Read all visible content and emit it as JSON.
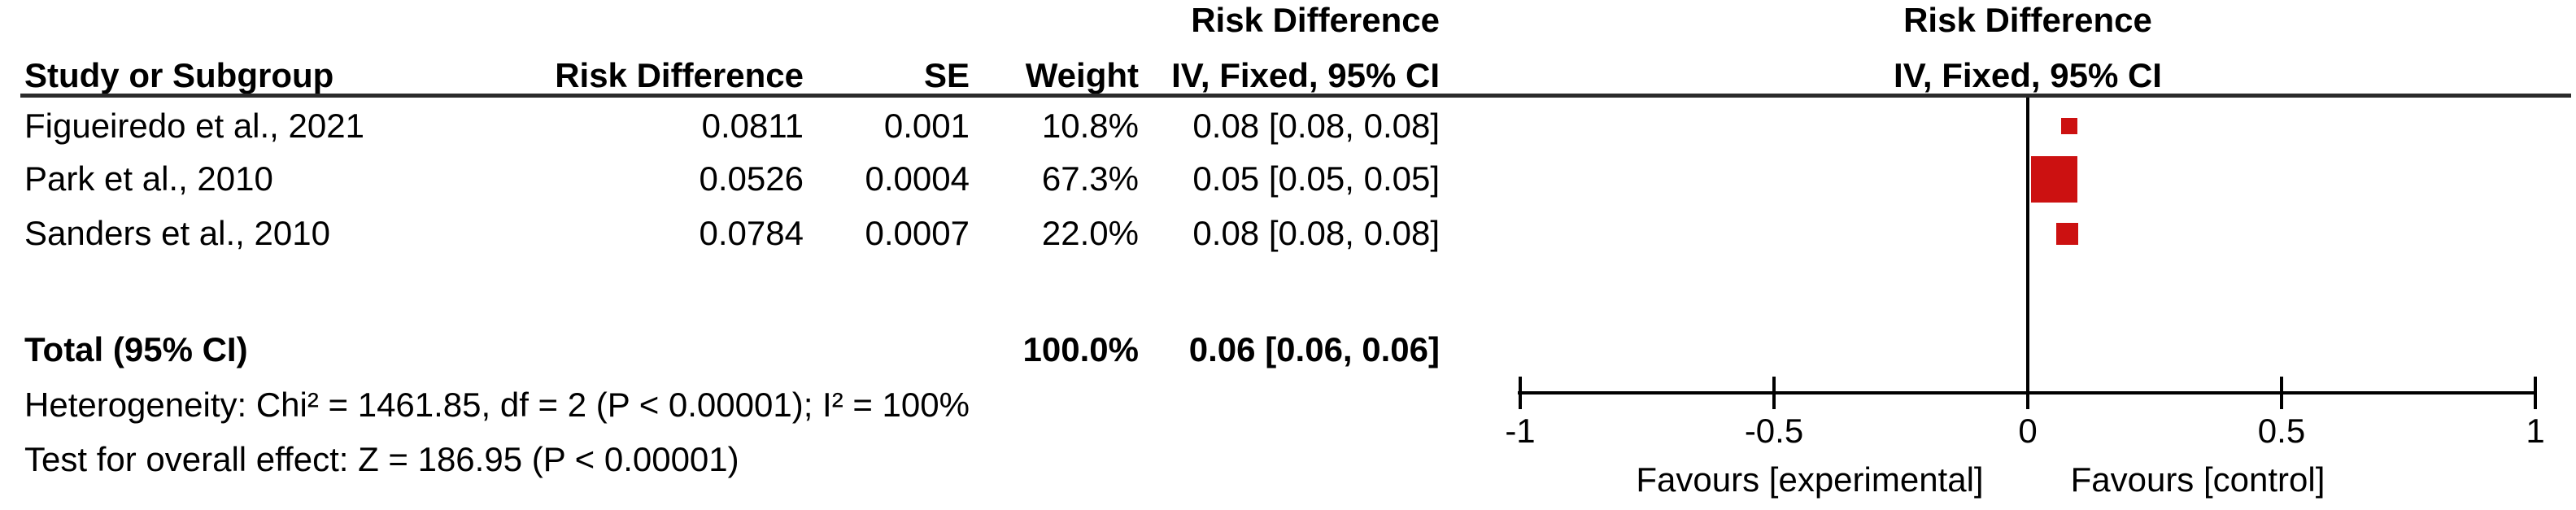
{
  "table": {
    "header_top": {
      "ci_col_label": "Risk Difference",
      "plot_label": "Risk Difference"
    },
    "header": {
      "study": "Study or Subgroup",
      "risk_difference": "Risk Difference",
      "se": "SE",
      "weight": "Weight",
      "ci": "IV, Fixed, 95% CI",
      "plot_ci": "IV, Fixed, 95% CI"
    },
    "rows": [
      {
        "study": "Figueiredo et al., 2021",
        "rd": "0.0811",
        "se": "0.001",
        "weight": "10.8%",
        "ci": "0.08 [0.08, 0.08]"
      },
      {
        "study": "Park et al., 2010",
        "rd": "0.0526",
        "se": "0.0004",
        "weight": "67.3%",
        "ci": "0.05 [0.05, 0.05]"
      },
      {
        "study": "Sanders et al., 2010",
        "rd": "0.0784",
        "se": "0.0007",
        "weight": "22.0%",
        "ci": "0.08 [0.08, 0.08]"
      }
    ],
    "total": {
      "label": "Total (95% CI)",
      "weight": "100.0%",
      "ci": "0.06 [0.06, 0.06]"
    },
    "heterogeneity": "Heterogeneity: Chi² = 1461.85, df = 2 (P < 0.00001); I² = 100%",
    "overall_effect": "Test for overall effect: Z = 186.95 (P < 0.00001)"
  },
  "plot": {
    "favours_left": "Favours [experimental]",
    "favours_right": "Favours [control]",
    "marker_color": "#CC1111"
  },
  "chart_data": {
    "type": "scatter",
    "subtype": "forest",
    "title": "Risk Difference — IV, Fixed, 95% CI",
    "studies": [
      "Figueiredo et al., 2021",
      "Park et al., 2010",
      "Sanders et al., 2010"
    ],
    "estimates": [
      0.0811,
      0.0526,
      0.0784
    ],
    "se": [
      0.001,
      0.0004,
      0.0007
    ],
    "weights_pct": [
      10.8,
      67.3,
      22.0
    ],
    "ci_text": [
      "0.08 [0.08, 0.08]",
      "0.05 [0.05, 0.05]",
      "0.08 [0.08, 0.08]"
    ],
    "total": {
      "estimate": 0.06,
      "ci_low": 0.06,
      "ci_high": 0.06,
      "weight_pct": 100.0
    },
    "heterogeneity": {
      "chi2": 1461.85,
      "df": 2,
      "p": "< 0.00001",
      "i2_pct": 100
    },
    "overall_effect": {
      "z": 186.95,
      "p": "< 0.00001"
    },
    "xlim": [
      -1,
      1
    ],
    "x_tick_values": [
      -1,
      -0.5,
      0,
      0.5,
      1
    ],
    "x_tick_labels": [
      "-1",
      "-0.5",
      "0",
      "0.5",
      "1"
    ],
    "xlabel_left": "Favours [experimental]",
    "xlabel_right": "Favours [control]",
    "grid": false,
    "legend": false
  }
}
